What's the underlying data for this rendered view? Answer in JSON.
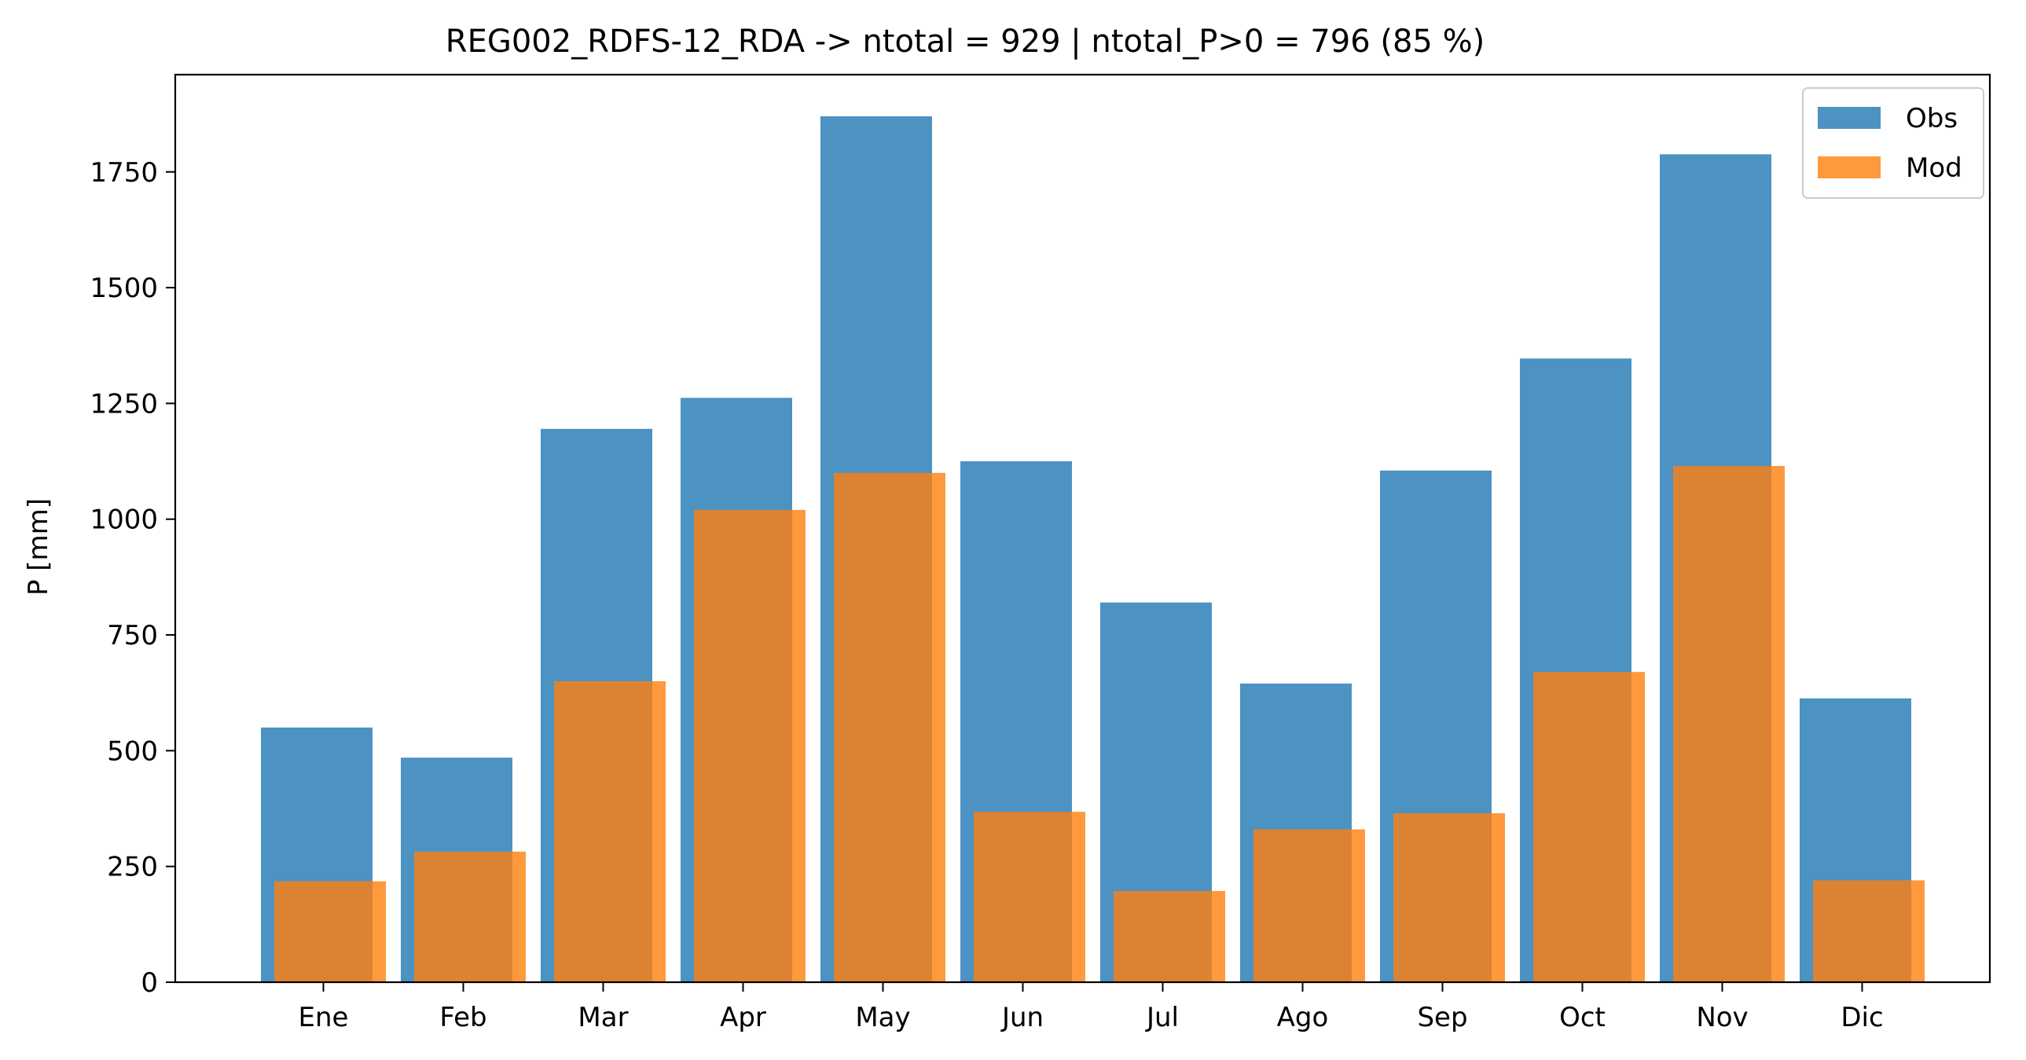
{
  "chart_data": {
    "type": "bar",
    "title": "REG002_RDFS-12_RDA -> ntotal = 929 | ntotal_P>0 = 796 (85 %)",
    "xlabel": "",
    "ylabel": "P [mm]",
    "categories": [
      "Ene",
      "Feb",
      "Mar",
      "Apr",
      "May",
      "Jun",
      "Jul",
      "Ago",
      "Sep",
      "Oct",
      "Nov",
      "Dic"
    ],
    "series": [
      {
        "name": "Obs",
        "color": "#1f77b4",
        "values": [
          550,
          485,
          1195,
          1262,
          1870,
          1125,
          820,
          645,
          1105,
          1347,
          1788,
          613
        ]
      },
      {
        "name": "Mod",
        "color": "#ff7f0e",
        "values": [
          218,
          282,
          650,
          1020,
          1100,
          368,
          197,
          330,
          365,
          670,
          1115,
          220
        ]
      }
    ],
    "ylim": [
      0,
      1960
    ],
    "yticks": [
      0,
      250,
      500,
      750,
      1000,
      1250,
      1500,
      1750
    ],
    "grid": false,
    "legend_position": "top-right"
  }
}
